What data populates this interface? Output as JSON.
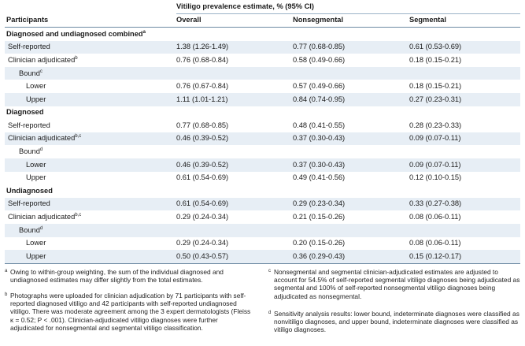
{
  "header": {
    "participants": "Participants",
    "span_title": "Vitiligo prevalence estimate, % (95% CI)",
    "overall": "Overall",
    "nonsegmental": "Nonsegmental",
    "segmental": "Segmental"
  },
  "groups": [
    {
      "title": "Diagnosed and undiagnosed combined",
      "title_sup": "a",
      "self": {
        "label": "Self-reported",
        "sup": "",
        "overall": "1.38 (1.26-1.49)",
        "nonseg": "0.77 (0.68-0.85)",
        "seg": "0.61 (0.53-0.69)"
      },
      "clin": {
        "label": "Clinician adjudicated",
        "sup": "b",
        "overall": "0.76 (0.68-0.84)",
        "nonseg": "0.58 (0.49-0.66)",
        "seg": "0.18 (0.15-0.21)"
      },
      "bound": {
        "label": "Bound",
        "sup": "c"
      },
      "lower": {
        "label": "Lower",
        "overall": "0.76 (0.67-0.84)",
        "nonseg": "0.57 (0.49-0.66)",
        "seg": "0.18 (0.15-0.21)"
      },
      "upper": {
        "label": "Upper",
        "overall": "1.11 (1.01-1.21)",
        "nonseg": "0.84 (0.74-0.95)",
        "seg": "0.27 (0.23-0.31)"
      }
    },
    {
      "title": "Diagnosed",
      "title_sup": "",
      "self": {
        "label": "Self-reported",
        "sup": "",
        "overall": "0.77 (0.68-0.85)",
        "nonseg": "0.48 (0.41-0.55)",
        "seg": "0.28 (0.23-0.33)"
      },
      "clin": {
        "label": "Clinician adjudicated",
        "sup": "b,c",
        "overall": "0.46 (0.39-0.52)",
        "nonseg": "0.37 (0.30-0.43)",
        "seg": "0.09 (0.07-0.11)"
      },
      "bound": {
        "label": "Bound",
        "sup": "d"
      },
      "lower": {
        "label": "Lower",
        "overall": "0.46 (0.39-0.52)",
        "nonseg": "0.37 (0.30-0.43)",
        "seg": "0.09 (0.07-0.11)"
      },
      "upper": {
        "label": "Upper",
        "overall": "0.61 (0.54-0.69)",
        "nonseg": "0.49 (0.41-0.56)",
        "seg": "0.12 (0.10-0.15)"
      }
    },
    {
      "title": "Undiagnosed",
      "title_sup": "",
      "self": {
        "label": "Self-reported",
        "sup": "",
        "overall": "0.61 (0.54-0.69)",
        "nonseg": "0.29 (0.23-0.34)",
        "seg": "0.33 (0.27-0.38)"
      },
      "clin": {
        "label": "Clinician adjudicated",
        "sup": "b,c",
        "overall": "0.29 (0.24-0.34)",
        "nonseg": "0.21 (0.15-0.26)",
        "seg": "0.08 (0.06-0.11)"
      },
      "bound": {
        "label": "Bound",
        "sup": "d"
      },
      "lower": {
        "label": "Lower",
        "overall": "0.29 (0.24-0.34)",
        "nonseg": "0.20 (0.15-0.26)",
        "seg": "0.08 (0.06-0.11)"
      },
      "upper": {
        "label": "Upper",
        "overall": "0.50 (0.43-0.57)",
        "nonseg": "0.36 (0.29-0.43)",
        "seg": "0.15 (0.12-0.17)"
      }
    }
  ],
  "footnotes": {
    "a": {
      "mark": "a",
      "text": "Owing to within-group weighting, the sum of the individual diagnosed and undiagnosed estimates may differ slightly from the total estimates."
    },
    "b": {
      "mark": "b",
      "text": "Photographs were uploaded for clinician adjudication by 71 participants with self-reported diagnosed vitiligo and 42 participants with self-reported undiagnosed vitiligo. There was moderate agreement among the 3 expert dermatologists (Fleiss κ = 0.52; P < .001). Clinician-adjudicated vitiligo diagnoses were further adjudicated for nonsegmental and segmental vitiligo classification."
    },
    "c": {
      "mark": "c",
      "text": "Nonsegmental and segmental clinician-adjudicated estimates are adjusted to account for 54.5% of self-reported segmental vitiligo diagnoses being adjudicated as segmental and 100% of self-reported nonsegmental vitiligo diagnoses being adjudicated as nonsegmental."
    },
    "d": {
      "mark": "d",
      "text": "Sensitivity analysis results: lower bound, indeterminate diagnoses were classified as nonvitiligo diagnoses, and upper bound, indeterminate diagnoses were classified as vitiligo diagnoses."
    }
  }
}
